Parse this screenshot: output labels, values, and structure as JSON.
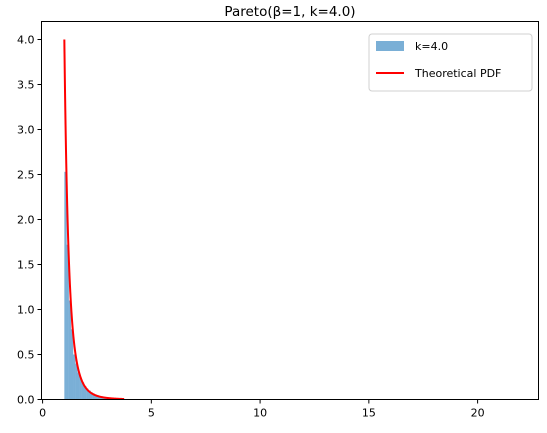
{
  "chart_data": {
    "type": "bar",
    "title": "Pareto(β=1, k=4.0)",
    "xlabel": "",
    "ylabel": "",
    "xlim": [
      -0.05,
      22.8
    ],
    "ylim": [
      0,
      4.2
    ],
    "xticks": [
      0,
      5,
      10,
      15,
      20
    ],
    "yticks": [
      0.0,
      0.5,
      1.0,
      1.5,
      2.0,
      2.5,
      3.0,
      3.5,
      4.0
    ],
    "grid": false,
    "legend_position": "top-right",
    "colors": {
      "histogram": "#7aafd6",
      "pdf": "#ff0000"
    },
    "histogram": {
      "name": "k=4.0",
      "bin_width": 0.1,
      "bins": [
        {
          "x0": 1.0,
          "h": 2.53
        },
        {
          "x0": 1.1,
          "h": 1.72
        },
        {
          "x0": 1.2,
          "h": 1.1
        },
        {
          "x0": 1.3,
          "h": 0.78
        },
        {
          "x0": 1.4,
          "h": 0.5
        },
        {
          "x0": 1.5,
          "h": 0.4
        },
        {
          "x0": 1.6,
          "h": 0.3
        },
        {
          "x0": 1.7,
          "h": 0.24
        },
        {
          "x0": 1.8,
          "h": 0.19
        },
        {
          "x0": 1.9,
          "h": 0.15
        },
        {
          "x0": 2.0,
          "h": 0.12
        },
        {
          "x0": 2.1,
          "h": 0.1
        },
        {
          "x0": 2.2,
          "h": 0.08
        },
        {
          "x0": 2.3,
          "h": 0.065
        },
        {
          "x0": 2.4,
          "h": 0.055
        },
        {
          "x0": 2.5,
          "h": 0.045
        },
        {
          "x0": 2.6,
          "h": 0.038
        },
        {
          "x0": 2.7,
          "h": 0.032
        },
        {
          "x0": 2.8,
          "h": 0.027
        },
        {
          "x0": 2.9,
          "h": 0.023
        },
        {
          "x0": 3.0,
          "h": 0.02
        },
        {
          "x0": 3.1,
          "h": 0.017
        },
        {
          "x0": 3.2,
          "h": 0.014
        },
        {
          "x0": 3.3,
          "h": 0.012
        },
        {
          "x0": 3.4,
          "h": 0.01
        },
        {
          "x0": 3.5,
          "h": 0.008
        },
        {
          "x0": 3.6,
          "h": 0.007
        }
      ]
    },
    "pdf": {
      "name": "Theoretical PDF",
      "formula": "k * beta^k / x^(k+1)",
      "k": 4.0,
      "beta": 1,
      "x_range": [
        1.0,
        3.75
      ]
    }
  }
}
